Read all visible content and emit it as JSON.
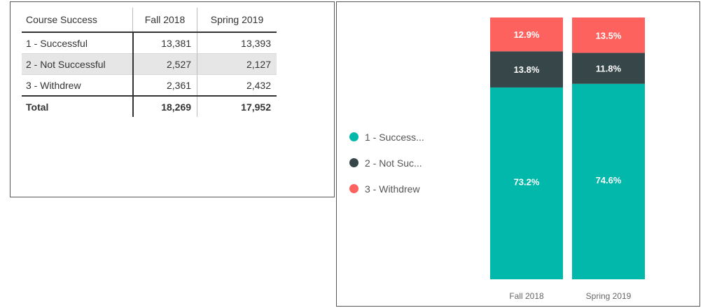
{
  "table": {
    "header": {
      "row_label": "Course Success",
      "col1": "Fall 2018",
      "col2": "Spring 2019"
    },
    "rows": [
      {
        "label": "1 - Successful",
        "fall": "13,381",
        "spring": "13,393"
      },
      {
        "label": "2 - Not Successful",
        "fall": "2,527",
        "spring": "2,127"
      },
      {
        "label": "3 - Withdrew",
        "fall": "2,361",
        "spring": "2,432"
      }
    ],
    "total": {
      "label": "Total",
      "fall": "18,269",
      "spring": "17,952"
    }
  },
  "legend": {
    "items": [
      {
        "label": "1 - Success...",
        "color": "#01B8AA"
      },
      {
        "label": "2 - Not Suc...",
        "color": "#374649"
      },
      {
        "label": "3 - Withdrew",
        "color": "#FD625E"
      }
    ]
  },
  "chart_data": {
    "type": "bar",
    "stacked": "100%",
    "categories": [
      "Fall 2018",
      "Spring 2019"
    ],
    "series": [
      {
        "name": "1 - Successful",
        "color": "#01B8AA",
        "values": [
          73.2,
          74.6
        ],
        "labels": [
          "73.2%",
          "74.6%"
        ]
      },
      {
        "name": "2 - Not Successful",
        "color": "#374649",
        "values": [
          13.8,
          11.8
        ],
        "labels": [
          "13.8%",
          "11.8%"
        ]
      },
      {
        "name": "3 - Withdrew",
        "color": "#FD625E",
        "values": [
          12.9,
          13.5
        ],
        "labels": [
          "12.9%",
          "13.5%"
        ]
      }
    ],
    "ylim": [
      0,
      100
    ],
    "legend_position": "left",
    "grid": false
  }
}
